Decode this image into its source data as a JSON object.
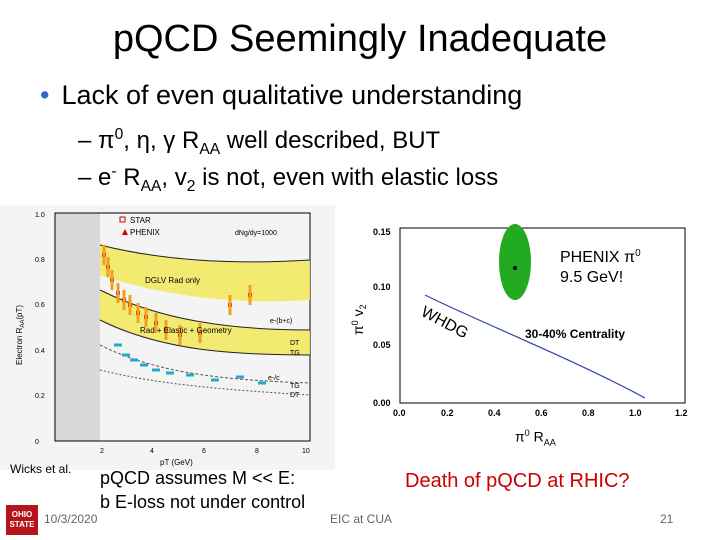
{
  "title": "p​QCD Seemingly Inadequate",
  "bullet": "Lack of even qualitative understanding",
  "sub1_parts": {
    "dash": "–",
    "a": "π",
    "a_sup": "0",
    "b": ", η, γ R",
    "b_sub": "AA",
    "c": " well described, BUT"
  },
  "sub2_parts": {
    "dash": "–",
    "a": "e",
    "a_sup": "-",
    "b": " R",
    "b_sub": "AA",
    "c": ", v",
    "c_sub": "2",
    "d": " is not, even with elastic loss"
  },
  "left_plot": {
    "ylabel": "Electron R",
    "ylabel_sub": "AA",
    "ylabel_tail": "(pT)",
    "xlabel": "pT (GeV)",
    "legend": [
      "STAR",
      "PHENIX"
    ],
    "annotation_top": "dNg/dy=1000",
    "band_labels": [
      "DGLV Rad only",
      "Rad + Elastic + Geometry",
      "e-(b+c)",
      "DT",
      "TG",
      "e-/c",
      "TG",
      "DT"
    ],
    "yticks": [
      "0",
      "0.2",
      "0.4",
      "0.6",
      "0.8",
      "1.0"
    ],
    "xticks": [
      "2",
      "4",
      "6",
      "8",
      "10"
    ]
  },
  "right_plot": {
    "ylabel": "π",
    "ylabel_sup": "0",
    "ylabel_tail": " v",
    "ylabel_sub": "2",
    "xlabel": "π",
    "xlabel_sup": "0",
    "xlabel_tail": " R",
    "xlabel_sub": "AA",
    "yticks": [
      "0.00",
      "0.05",
      "0.10",
      "0.15"
    ],
    "xticks": [
      "0.0",
      "0.2",
      "0.4",
      "0.6",
      "0.8",
      "1.0",
      "1.2"
    ],
    "curve_label": "WHDG",
    "centrality": "30-40% Centrality",
    "point_label_1": "PHENIX π",
    "point_label_1_sup": "0",
    "point_label_2": "9.5 GeV!",
    "colors": {
      "ellipse": "#22aa22",
      "curve": "#3344aa"
    }
  },
  "cite": "Wicks et al.",
  "note": [
    "p​QCD assumes M << E:",
    "b E-loss not under control"
  ],
  "death": "Death of p​QCD at RHIC?",
  "logo_lines": [
    "OHIO",
    "STATE"
  ],
  "footer": {
    "date": "10/3/2020",
    "venue": "EIC at CUA",
    "page": "21"
  },
  "colors": {
    "bullet": "#3366cc",
    "death": "#cc0000"
  }
}
